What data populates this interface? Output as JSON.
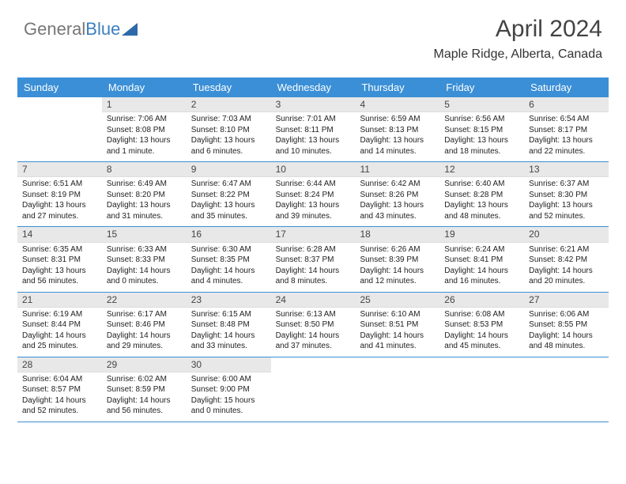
{
  "logo": {
    "part1": "General",
    "part2": "Blue"
  },
  "header": {
    "title": "April 2024",
    "location": "Maple Ridge, Alberta, Canada"
  },
  "colors": {
    "band": "#3b8fd6",
    "numbg": "#e8e8e8",
    "logo_blue": "#3b7fbf"
  },
  "typography": {
    "title_fontsize": 30,
    "location_fontsize": 16,
    "header_fontsize": 13,
    "cell_fontsize": 10
  },
  "days": [
    "Sunday",
    "Monday",
    "Tuesday",
    "Wednesday",
    "Thursday",
    "Friday",
    "Saturday"
  ],
  "weeks": [
    [
      {
        "n": "",
        "sr": "",
        "ss": "",
        "dl": ""
      },
      {
        "n": "1",
        "sr": "Sunrise: 7:06 AM",
        "ss": "Sunset: 8:08 PM",
        "dl": "Daylight: 13 hours and 1 minute."
      },
      {
        "n": "2",
        "sr": "Sunrise: 7:03 AM",
        "ss": "Sunset: 8:10 PM",
        "dl": "Daylight: 13 hours and 6 minutes."
      },
      {
        "n": "3",
        "sr": "Sunrise: 7:01 AM",
        "ss": "Sunset: 8:11 PM",
        "dl": "Daylight: 13 hours and 10 minutes."
      },
      {
        "n": "4",
        "sr": "Sunrise: 6:59 AM",
        "ss": "Sunset: 8:13 PM",
        "dl": "Daylight: 13 hours and 14 minutes."
      },
      {
        "n": "5",
        "sr": "Sunrise: 6:56 AM",
        "ss": "Sunset: 8:15 PM",
        "dl": "Daylight: 13 hours and 18 minutes."
      },
      {
        "n": "6",
        "sr": "Sunrise: 6:54 AM",
        "ss": "Sunset: 8:17 PM",
        "dl": "Daylight: 13 hours and 22 minutes."
      }
    ],
    [
      {
        "n": "7",
        "sr": "Sunrise: 6:51 AM",
        "ss": "Sunset: 8:19 PM",
        "dl": "Daylight: 13 hours and 27 minutes."
      },
      {
        "n": "8",
        "sr": "Sunrise: 6:49 AM",
        "ss": "Sunset: 8:20 PM",
        "dl": "Daylight: 13 hours and 31 minutes."
      },
      {
        "n": "9",
        "sr": "Sunrise: 6:47 AM",
        "ss": "Sunset: 8:22 PM",
        "dl": "Daylight: 13 hours and 35 minutes."
      },
      {
        "n": "10",
        "sr": "Sunrise: 6:44 AM",
        "ss": "Sunset: 8:24 PM",
        "dl": "Daylight: 13 hours and 39 minutes."
      },
      {
        "n": "11",
        "sr": "Sunrise: 6:42 AM",
        "ss": "Sunset: 8:26 PM",
        "dl": "Daylight: 13 hours and 43 minutes."
      },
      {
        "n": "12",
        "sr": "Sunrise: 6:40 AM",
        "ss": "Sunset: 8:28 PM",
        "dl": "Daylight: 13 hours and 48 minutes."
      },
      {
        "n": "13",
        "sr": "Sunrise: 6:37 AM",
        "ss": "Sunset: 8:30 PM",
        "dl": "Daylight: 13 hours and 52 minutes."
      }
    ],
    [
      {
        "n": "14",
        "sr": "Sunrise: 6:35 AM",
        "ss": "Sunset: 8:31 PM",
        "dl": "Daylight: 13 hours and 56 minutes."
      },
      {
        "n": "15",
        "sr": "Sunrise: 6:33 AM",
        "ss": "Sunset: 8:33 PM",
        "dl": "Daylight: 14 hours and 0 minutes."
      },
      {
        "n": "16",
        "sr": "Sunrise: 6:30 AM",
        "ss": "Sunset: 8:35 PM",
        "dl": "Daylight: 14 hours and 4 minutes."
      },
      {
        "n": "17",
        "sr": "Sunrise: 6:28 AM",
        "ss": "Sunset: 8:37 PM",
        "dl": "Daylight: 14 hours and 8 minutes."
      },
      {
        "n": "18",
        "sr": "Sunrise: 6:26 AM",
        "ss": "Sunset: 8:39 PM",
        "dl": "Daylight: 14 hours and 12 minutes."
      },
      {
        "n": "19",
        "sr": "Sunrise: 6:24 AM",
        "ss": "Sunset: 8:41 PM",
        "dl": "Daylight: 14 hours and 16 minutes."
      },
      {
        "n": "20",
        "sr": "Sunrise: 6:21 AM",
        "ss": "Sunset: 8:42 PM",
        "dl": "Daylight: 14 hours and 20 minutes."
      }
    ],
    [
      {
        "n": "21",
        "sr": "Sunrise: 6:19 AM",
        "ss": "Sunset: 8:44 PM",
        "dl": "Daylight: 14 hours and 25 minutes."
      },
      {
        "n": "22",
        "sr": "Sunrise: 6:17 AM",
        "ss": "Sunset: 8:46 PM",
        "dl": "Daylight: 14 hours and 29 minutes."
      },
      {
        "n": "23",
        "sr": "Sunrise: 6:15 AM",
        "ss": "Sunset: 8:48 PM",
        "dl": "Daylight: 14 hours and 33 minutes."
      },
      {
        "n": "24",
        "sr": "Sunrise: 6:13 AM",
        "ss": "Sunset: 8:50 PM",
        "dl": "Daylight: 14 hours and 37 minutes."
      },
      {
        "n": "25",
        "sr": "Sunrise: 6:10 AM",
        "ss": "Sunset: 8:51 PM",
        "dl": "Daylight: 14 hours and 41 minutes."
      },
      {
        "n": "26",
        "sr": "Sunrise: 6:08 AM",
        "ss": "Sunset: 8:53 PM",
        "dl": "Daylight: 14 hours and 45 minutes."
      },
      {
        "n": "27",
        "sr": "Sunrise: 6:06 AM",
        "ss": "Sunset: 8:55 PM",
        "dl": "Daylight: 14 hours and 48 minutes."
      }
    ],
    [
      {
        "n": "28",
        "sr": "Sunrise: 6:04 AM",
        "ss": "Sunset: 8:57 PM",
        "dl": "Daylight: 14 hours and 52 minutes."
      },
      {
        "n": "29",
        "sr": "Sunrise: 6:02 AM",
        "ss": "Sunset: 8:59 PM",
        "dl": "Daylight: 14 hours and 56 minutes."
      },
      {
        "n": "30",
        "sr": "Sunrise: 6:00 AM",
        "ss": "Sunset: 9:00 PM",
        "dl": "Daylight: 15 hours and 0 minutes."
      },
      {
        "n": "",
        "sr": "",
        "ss": "",
        "dl": ""
      },
      {
        "n": "",
        "sr": "",
        "ss": "",
        "dl": ""
      },
      {
        "n": "",
        "sr": "",
        "ss": "",
        "dl": ""
      },
      {
        "n": "",
        "sr": "",
        "ss": "",
        "dl": ""
      }
    ]
  ]
}
